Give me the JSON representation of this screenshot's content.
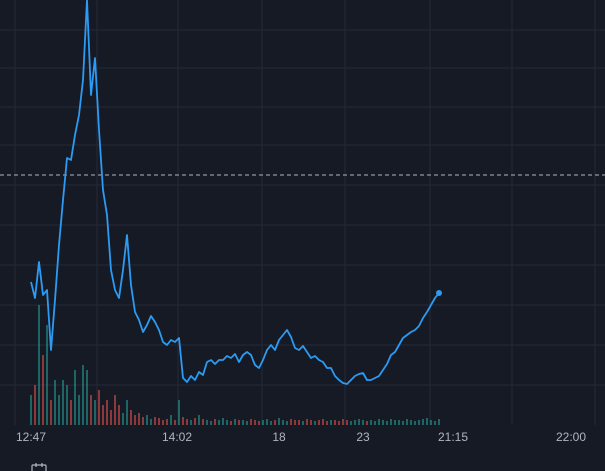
{
  "chart_data": {
    "type": "line",
    "x": [
      0,
      1,
      2,
      3,
      4,
      5,
      6,
      7,
      8,
      9,
      10,
      11,
      12,
      13,
      14,
      15,
      16,
      17,
      18,
      19,
      20,
      21,
      22,
      23,
      24,
      25,
      26,
      27,
      28,
      29,
      30,
      31,
      32,
      33,
      34,
      35,
      36,
      37,
      38,
      39,
      40,
      41,
      42,
      43,
      44,
      45,
      46,
      47,
      48,
      49,
      50,
      51,
      52,
      53,
      54,
      55,
      56,
      57,
      58,
      59,
      60,
      61,
      62,
      63,
      64,
      65,
      66,
      67,
      68,
      69,
      70,
      71,
      72,
      73,
      74,
      75,
      76,
      77,
      78,
      79,
      80,
      81,
      82,
      83,
      84,
      85,
      86,
      87,
      88,
      89,
      90,
      91,
      92,
      93,
      94,
      95,
      96,
      97,
      98,
      99,
      100,
      101,
      102
    ],
    "series": [
      {
        "color": "#2b9bf4",
        "values": [
          143,
          127,
          163,
          130,
          135,
          75,
          125,
          180,
          225,
          267,
          265,
          290,
          310,
          345,
          425,
          330,
          367,
          295,
          235,
          210,
          155,
          135,
          127,
          155,
          190,
          140,
          113,
          105,
          93,
          100,
          109,
          103,
          95,
          83,
          80,
          85,
          83,
          87,
          47,
          43,
          49,
          45,
          53,
          50,
          63,
          65,
          61,
          65,
          65,
          69,
          67,
          71,
          63,
          70,
          73,
          70,
          60,
          57,
          65,
          75,
          80,
          75,
          85,
          90,
          95,
          88,
          77,
          75,
          79,
          73,
          67,
          69,
          65,
          63,
          57,
          57,
          49,
          45,
          42,
          41,
          45,
          49,
          51,
          52,
          45,
          45,
          47,
          49,
          55,
          61,
          70,
          73,
          80,
          87,
          90,
          93,
          95,
          99,
          107,
          113,
          120,
          127,
          132
        ]
      }
    ],
    "volume": {
      "up_color": "#26a69a",
      "down_color": "#ef5350",
      "vlim": [
        0,
        425
      ],
      "values": [
        30,
        40,
        120,
        70,
        100,
        25,
        45,
        30,
        45,
        40,
        25,
        55,
        30,
        60,
        55,
        30,
        25,
        35,
        20,
        25,
        15,
        30,
        20,
        12,
        25,
        15,
        10,
        12,
        8,
        10,
        6,
        8,
        7,
        5,
        6,
        10,
        5,
        25,
        8,
        6,
        5,
        7,
        10,
        6,
        5,
        4,
        6,
        5,
        7,
        5,
        4,
        6,
        5,
        5,
        4,
        6,
        5,
        4,
        5,
        6,
        4,
        5,
        7,
        5,
        4,
        6,
        5,
        5,
        4,
        6,
        5,
        4,
        5,
        6,
        4,
        5,
        5,
        4,
        6,
        5,
        4,
        5,
        6,
        5,
        4,
        5,
        4,
        6,
        5,
        4,
        6,
        5,
        5,
        4,
        6,
        5,
        4,
        5,
        6,
        7,
        5,
        4,
        6
      ]
    },
    "xlim": [
      -7.75,
      143.5
    ],
    "ylim": [
      0,
      425
    ],
    "xticks": [
      {
        "value": 0,
        "label": "12:47"
      },
      {
        "value": 36.5,
        "label": "14:02"
      },
      {
        "value": 62,
        "label": "18"
      },
      {
        "value": 83,
        "label": "23"
      },
      {
        "value": 105.5,
        "label": "21:15"
      },
      {
        "value": 135,
        "label": "22:00"
      }
    ],
    "xgrid": [
      -4,
      16.5,
      36.75,
      57.75,
      78.5,
      99.75,
      120.25,
      141
    ],
    "ygrid": [
      395,
      357,
      318,
      280,
      240,
      200,
      160,
      120,
      80,
      40
    ],
    "reference_line": 250
  }
}
